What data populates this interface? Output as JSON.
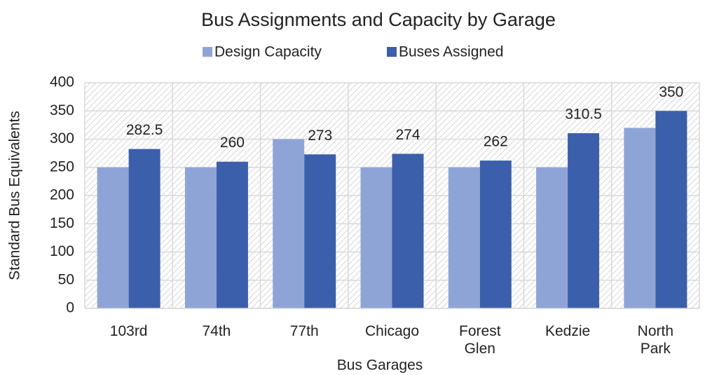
{
  "chart_data": {
    "type": "bar",
    "title": "Bus Assignments and Capacity by Garage",
    "x_label": "Bus Garages",
    "y_label": "Standard Bus Equivalents",
    "categories": [
      "103rd",
      "74th",
      "77th",
      "Chicago",
      "Forest Glen",
      "Kedzie",
      "North Park"
    ],
    "series": [
      {
        "name": "Design Capacity",
        "color": "#8fa4d6",
        "values": [
          250,
          250,
          300,
          250,
          250,
          250,
          320
        ],
        "show_labels": false
      },
      {
        "name": "Buses Assigned",
        "color": "#3b5faa",
        "values": [
          282.5,
          260,
          273,
          274,
          262,
          310.5,
          350
        ],
        "show_labels": true
      }
    ],
    "ylim": [
      0,
      400
    ],
    "yticks": [
      0,
      50,
      100,
      150,
      200,
      250,
      300,
      350,
      400
    ],
    "grid": true,
    "legend": "top"
  }
}
